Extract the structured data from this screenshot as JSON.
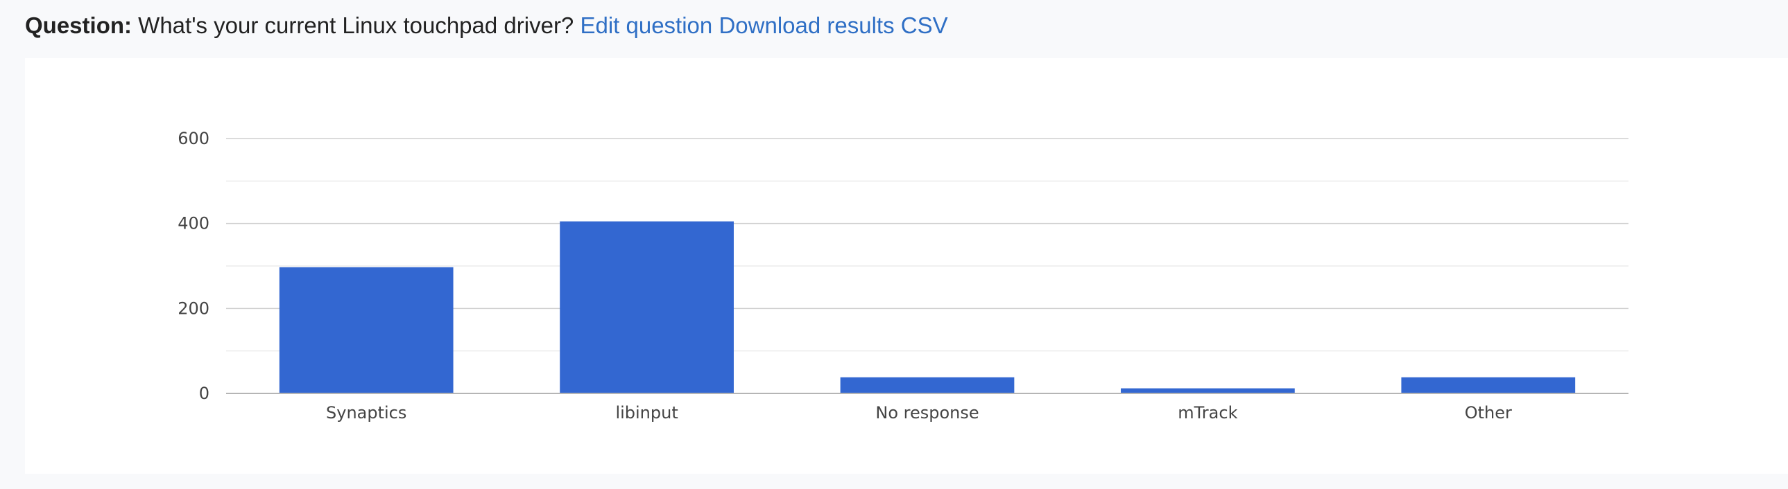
{
  "header": {
    "question_label": "Question:",
    "question_text": "What's your current Linux touchpad driver?",
    "edit_link": "Edit question",
    "download_link": "Download results CSV"
  },
  "colors": {
    "bar": "#3367d1",
    "link": "#2f6fc5",
    "gridline_major": "#cfcfcf",
    "gridline_minor": "#ebebeb",
    "background": "#f8f9fb"
  },
  "chart_data": {
    "type": "bar",
    "title": "",
    "xlabel": "",
    "ylabel": "",
    "categories": [
      "Synaptics",
      "libinput",
      "No response",
      "mTrack",
      "Other"
    ],
    "values": [
      297,
      405,
      38,
      12,
      38
    ],
    "ylim": [
      0,
      600
    ],
    "yticks": [
      0,
      200,
      400,
      600
    ],
    "minor_gridlines": true,
    "grid": true,
    "legend": "none"
  }
}
